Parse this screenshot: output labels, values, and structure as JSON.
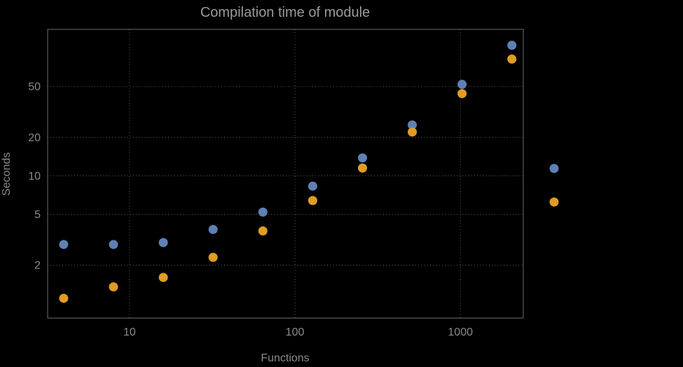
{
  "chart_data": {
    "type": "scatter",
    "title": "Compilation time of module",
    "xlabel": "Functions",
    "ylabel": "Seconds",
    "xscale": "log",
    "yscale": "log",
    "xlim": [
      3.2,
      2400
    ],
    "ylim": [
      0.77,
      140
    ],
    "grid": "dotted",
    "legend_position": "right",
    "x_ticks": [
      {
        "value": 10,
        "label": "10"
      },
      {
        "value": 100,
        "label": "100"
      },
      {
        "value": 1000,
        "label": "1000"
      }
    ],
    "y_ticks": [
      {
        "value": 2,
        "label": "2"
      },
      {
        "value": 5,
        "label": "5"
      },
      {
        "value": 10,
        "label": "10"
      },
      {
        "value": 20,
        "label": "20"
      },
      {
        "value": 50,
        "label": "50"
      }
    ],
    "x": [
      4,
      8,
      16,
      32,
      64,
      128,
      256,
      512,
      1024,
      2048
    ],
    "series": [
      {
        "name": "blue",
        "color": "#5E81B5",
        "values": [
          2.9,
          2.9,
          3.0,
          3.8,
          5.2,
          8.3,
          13.8,
          25,
          52,
          105
        ]
      },
      {
        "name": "orange",
        "color": "#E19C24",
        "values": [
          1.1,
          1.35,
          1.6,
          2.3,
          3.7,
          6.4,
          11.5,
          22,
          44,
          82
        ]
      }
    ],
    "legend": {
      "entries": [
        {
          "color": "#5E81B5",
          "label": ""
        },
        {
          "color": "#E19C24",
          "label": ""
        }
      ]
    },
    "colors": {
      "background": "#000000",
      "frame": "#6e6e6e",
      "grid": "#5e5e5e",
      "title": "#9a9a9a",
      "labels": "#8a8a8a"
    }
  }
}
